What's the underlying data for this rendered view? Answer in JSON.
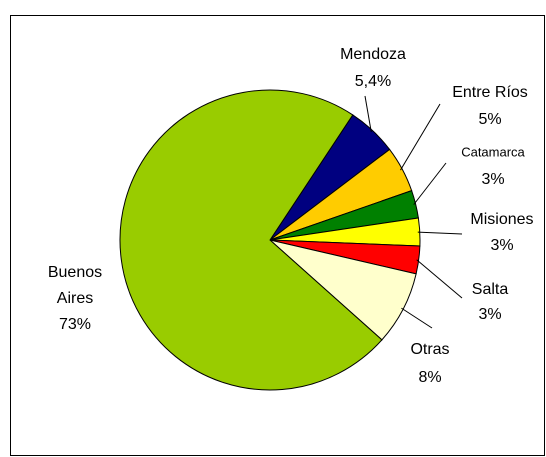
{
  "chart_data": {
    "type": "pie",
    "categories": [
      "Mendoza",
      "Entre Ríos",
      "Catamarca",
      "Misiones",
      "Salta",
      "Otras",
      "Buenos Aires"
    ],
    "values": [
      5.4,
      5,
      3,
      3,
      3,
      8,
      73
    ],
    "value_labels": [
      "5,4%",
      "5%",
      "3%",
      "3%",
      "3%",
      "8%",
      "73%"
    ],
    "colors": [
      "#000080",
      "#ffcc00",
      "#008000",
      "#ffff00",
      "#ff0000",
      "#ffffcc",
      "#99cc00"
    ],
    "start_angle": 33.5
  }
}
